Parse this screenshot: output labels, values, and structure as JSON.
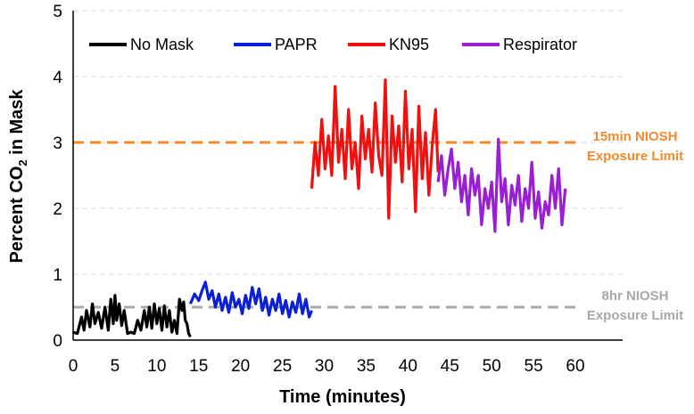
{
  "chart_data": {
    "type": "line",
    "xlabel": "Time (minutes)",
    "ylabel_main": "Percent CO",
    "ylabel_sub": "2",
    "ylabel_tail": " in Mask",
    "xlim": [
      0,
      60
    ],
    "ylim": [
      0,
      5
    ],
    "x_ticks": [
      "0",
      "5",
      "10",
      "15",
      "20",
      "25",
      "30",
      "35",
      "40",
      "45",
      "50",
      "55",
      "60"
    ],
    "y_ticks": [
      "0",
      "1",
      "2",
      "3",
      "4",
      "5"
    ],
    "grid": "horizontal dashed",
    "legend_position": "top",
    "series": [
      {
        "name": "No Mask",
        "color": "#000000",
        "x": [
          0,
          0.5,
          1,
          1.3,
          1.6,
          2,
          2.3,
          2.6,
          3,
          3.4,
          3.8,
          4.2,
          4.5,
          4.8,
          5,
          5.2,
          5.5,
          5.8,
          6.1,
          6.5,
          6.9,
          7.3,
          7.7,
          8.1,
          8.5,
          8.8,
          9.1,
          9.4,
          9.7,
          10,
          10.3,
          10.6,
          10.9,
          11.2,
          11.5,
          11.8,
          12.1,
          12.4,
          12.7,
          13,
          13.2,
          13.4,
          13.6,
          13.8,
          14
        ],
        "values": [
          0.12,
          0.1,
          0.35,
          0.15,
          0.45,
          0.2,
          0.55,
          0.25,
          0.42,
          0.18,
          0.5,
          0.15,
          0.62,
          0.25,
          0.68,
          0.3,
          0.55,
          0.22,
          0.45,
          0.1,
          0.12,
          0.1,
          0.3,
          0.15,
          0.45,
          0.2,
          0.5,
          0.18,
          0.55,
          0.25,
          0.48,
          0.15,
          0.52,
          0.2,
          0.45,
          0.12,
          0.3,
          0.1,
          0.62,
          0.45,
          0.58,
          0.3,
          0.25,
          0.1,
          0.05
        ]
      },
      {
        "name": "PAPR",
        "color": "#0b1fd6",
        "x": [
          14,
          14.5,
          15,
          15.4,
          15.8,
          16.2,
          16.6,
          17,
          17.4,
          17.8,
          18.2,
          18.6,
          19,
          19.4,
          19.8,
          20.2,
          20.6,
          21,
          21.4,
          21.8,
          22.2,
          22.6,
          23,
          23.4,
          23.8,
          24.2,
          24.6,
          25,
          25.4,
          25.8,
          26.2,
          26.6,
          27,
          27.4,
          27.8,
          28.2,
          28.5
        ],
        "values": [
          0.55,
          0.7,
          0.6,
          0.75,
          0.88,
          0.62,
          0.75,
          0.5,
          0.7,
          0.45,
          0.65,
          0.42,
          0.72,
          0.5,
          0.62,
          0.4,
          0.68,
          0.48,
          0.8,
          0.55,
          0.78,
          0.45,
          0.65,
          0.38,
          0.62,
          0.45,
          0.7,
          0.4,
          0.6,
          0.35,
          0.58,
          0.42,
          0.7,
          0.4,
          0.62,
          0.35,
          0.45
        ]
      },
      {
        "name": "KN95",
        "color": "#f01010",
        "x": [
          28.5,
          28.9,
          29.3,
          29.7,
          30.1,
          30.5,
          30.9,
          31.3,
          31.7,
          32.1,
          32.5,
          32.9,
          33.3,
          33.7,
          34.1,
          34.5,
          34.9,
          35.3,
          35.7,
          36.1,
          36.5,
          36.9,
          37.3,
          37.7,
          38.1,
          38.5,
          38.9,
          39.3,
          39.7,
          40.1,
          40.5,
          40.9,
          41.3,
          41.7,
          42.1,
          42.5,
          42.9,
          43.3,
          43.6
        ],
        "values": [
          2.3,
          3.0,
          2.5,
          3.35,
          2.6,
          3.1,
          2.5,
          3.85,
          2.7,
          3.2,
          2.45,
          3.5,
          2.6,
          3.0,
          2.3,
          3.4,
          2.75,
          3.2,
          2.55,
          3.6,
          2.8,
          2.5,
          3.95,
          1.85,
          3.4,
          2.7,
          3.25,
          2.4,
          3.78,
          2.6,
          3.2,
          1.95,
          3.55,
          2.45,
          3.15,
          2.2,
          2.95,
          3.5,
          2.55
        ]
      },
      {
        "name": "Respirator",
        "color": "#9a1fd4",
        "x": [
          43.6,
          44,
          44.4,
          44.8,
          45.2,
          45.6,
          46,
          46.4,
          46.8,
          47.2,
          47.6,
          48,
          48.4,
          48.8,
          49.2,
          49.6,
          50,
          50.4,
          50.8,
          51.2,
          51.6,
          52,
          52.4,
          52.8,
          53.2,
          53.6,
          54,
          54.4,
          54.8,
          55.2,
          55.6,
          56,
          56.4,
          56.8,
          57.2,
          57.6,
          58,
          58.4,
          58.8
        ],
        "values": [
          2.4,
          2.8,
          2.2,
          2.6,
          2.9,
          2.3,
          2.7,
          2.1,
          2.5,
          1.9,
          2.6,
          2.2,
          2.5,
          1.75,
          2.3,
          2.0,
          2.4,
          1.65,
          3.05,
          2.1,
          2.45,
          1.75,
          2.35,
          2.05,
          2.5,
          1.8,
          2.3,
          2.0,
          2.7,
          1.85,
          2.25,
          1.7,
          2.1,
          1.9,
          2.5,
          2.0,
          2.6,
          1.75,
          2.3
        ]
      }
    ],
    "reference_lines": [
      {
        "value": 3.0,
        "color": "#f08a2e",
        "label_line1": "15min NIOSH",
        "label_line2": "Exposure Limit"
      },
      {
        "value": 0.5,
        "color": "#a8a8a8",
        "label_line1": "8hr NIOSH",
        "label_line2": "Exposure Limit"
      }
    ]
  }
}
